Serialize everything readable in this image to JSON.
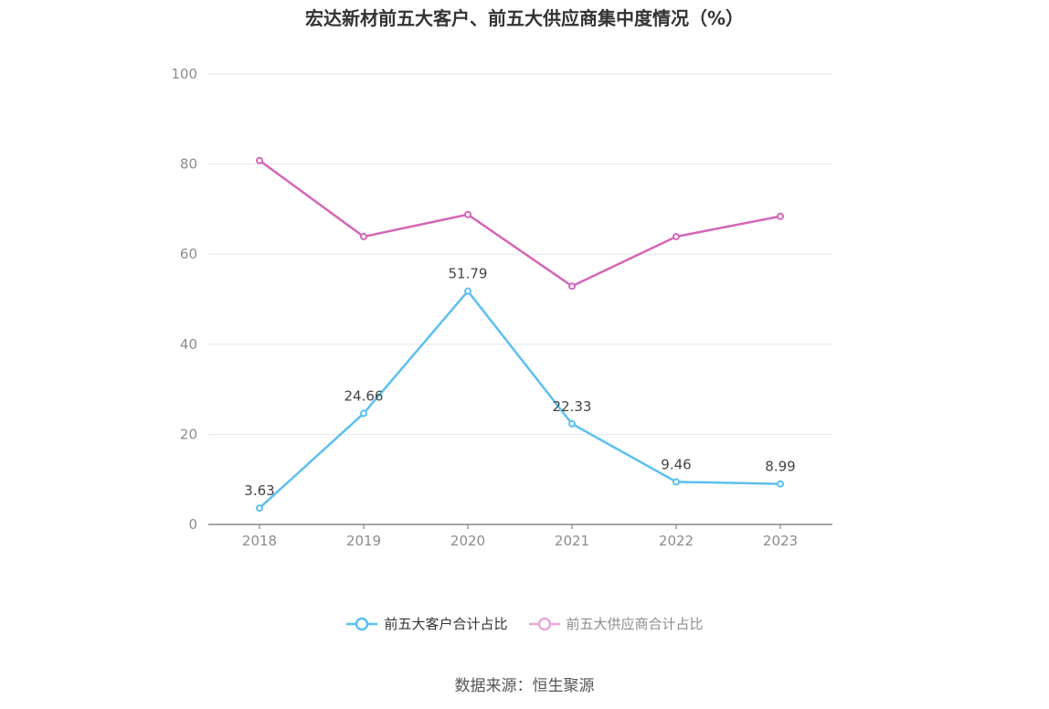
{
  "title": "宏达新材前五大客户、前五大供应商集中度情况（%）",
  "source": "数据来源：恒生聚源",
  "chart_data": {
    "type": "line",
    "categories": [
      "2018",
      "2019",
      "2020",
      "2021",
      "2022",
      "2023"
    ],
    "ylim": [
      0,
      100
    ],
    "yticks": [
      0,
      20,
      40,
      60,
      80,
      100
    ],
    "grid": true,
    "legend_position": "bottom",
    "series": [
      {
        "name": "前五大客户合计占比",
        "color": "#5bc0f0",
        "values": [
          3.63,
          24.66,
          51.79,
          22.33,
          9.46,
          8.99
        ],
        "data_labels": [
          "3.63",
          "24.66",
          "51.79",
          "22.33",
          "9.46",
          "8.99"
        ]
      },
      {
        "name": "前五大供应商合计占比",
        "color": "#d466b6",
        "values": [
          80.8,
          63.9,
          68.8,
          52.9,
          63.9,
          68.4
        ]
      }
    ]
  },
  "legend": {
    "customer_label": "前五大客户合计占比",
    "supplier_label": "前五大供应商合计占比",
    "customer_color": "#5bc0f0",
    "supplier_color": "#e9a9d6"
  }
}
